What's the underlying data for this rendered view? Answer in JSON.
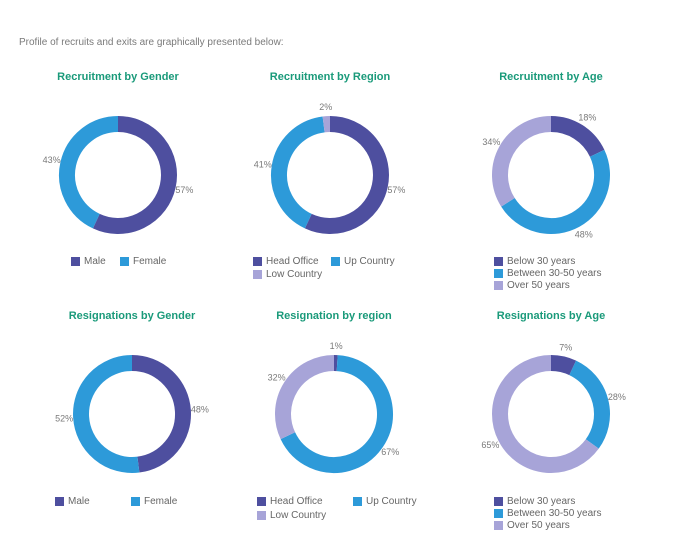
{
  "intro": "Profile of recruits and exits are graphically presented below:",
  "colors": {
    "dark": "#4e4f9f",
    "blue": "#2d9ad9",
    "lavender": "#a7a4d8",
    "title": "#1a9a7a"
  },
  "chart_data": [
    {
      "type": "pie",
      "title": "Recruitment by Gender",
      "slices": [
        {
          "label": "Male",
          "value": 57,
          "display": "57%",
          "color": "#4e4f9f"
        },
        {
          "label": "Female",
          "value": 43,
          "display": "43%",
          "color": "#2d9ad9"
        }
      ]
    },
    {
      "type": "pie",
      "title": "Recruitment by Region",
      "slices": [
        {
          "label": "Head Office",
          "value": 57,
          "display": "57%",
          "color": "#4e4f9f"
        },
        {
          "label": "Up Country",
          "value": 41,
          "display": "41%",
          "color": "#2d9ad9"
        },
        {
          "label": "Low Country",
          "value": 2,
          "display": "2%",
          "color": "#a7a4d8"
        }
      ]
    },
    {
      "type": "pie",
      "title": "Recruitment by Age",
      "slices": [
        {
          "label": "Below 30 years",
          "value": 18,
          "display": "18%",
          "color": "#4e4f9f"
        },
        {
          "label": "Between 30-50 years",
          "value": 48,
          "display": "48%",
          "color": "#2d9ad9"
        },
        {
          "label": "Over 50 years",
          "value": 34,
          "display": "34%",
          "color": "#a7a4d8"
        }
      ]
    },
    {
      "type": "pie",
      "title": "Resignations by Gender",
      "slices": [
        {
          "label": "Male",
          "value": 48,
          "display": "48%",
          "color": "#4e4f9f"
        },
        {
          "label": "Female",
          "value": 52,
          "display": "52%",
          "color": "#2d9ad9"
        }
      ]
    },
    {
      "type": "pie",
      "title": "Resignation by region",
      "slices": [
        {
          "label": "Head Office",
          "value": 1,
          "display": "1%",
          "color": "#4e4f9f"
        },
        {
          "label": "Up Country",
          "value": 67,
          "display": "67%",
          "color": "#2d9ad9"
        },
        {
          "label": "Low Country",
          "value": 32,
          "display": "32%",
          "color": "#a7a4d8"
        }
      ]
    },
    {
      "type": "pie",
      "title": "Resignations by Age",
      "slices": [
        {
          "label": "Below 30 years",
          "value": 7,
          "display": "7%",
          "color": "#4e4f9f"
        },
        {
          "label": "Between 30-50 years",
          "value": 28,
          "display": "28%",
          "color": "#2d9ad9"
        },
        {
          "label": "Over 50 years",
          "value": 65,
          "display": "65%",
          "color": "#a7a4d8"
        }
      ]
    }
  ]
}
